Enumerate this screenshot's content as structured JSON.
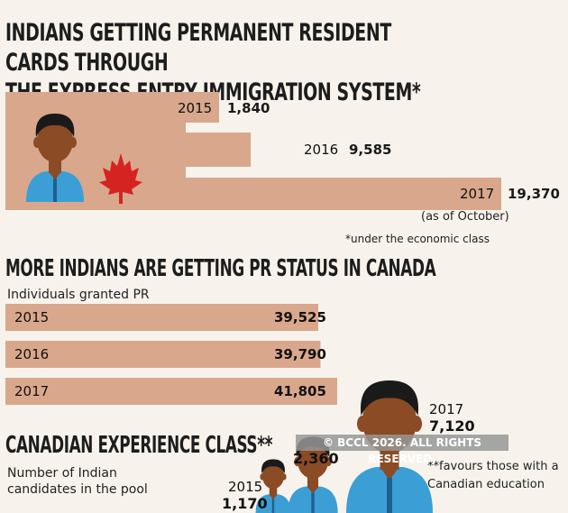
{
  "colors": {
    "bar": "#d9a78c",
    "bar_light": "#e4b79f",
    "skin": "#8a4b25",
    "hair": "#1b1a1a",
    "shirt": "#3b9fd6",
    "leaf": "#d5231f"
  },
  "section1": {
    "title_line1": "INDIANS GETTING PERMANENT RESIDENT CARDS THROUGH",
    "title_line2": "THE EXPRESS ENTRY IMMIGRATION SYSTEM*",
    "as_of": "(as of October)",
    "note": "*under the economic class",
    "icons": [
      "person-icon",
      "maple-leaf-icon"
    ]
  },
  "section2": {
    "title": "MORE INDIANS ARE GETTING PR STATUS IN CANADA",
    "subtitle": "Individuals granted PR"
  },
  "section3": {
    "title": "CANADIAN EXPERIENCE CLASS**",
    "subtitle": "Number of Indian candidates in the pool",
    "note": "**favours those with a Canadian education",
    "icons": [
      "person-icon"
    ]
  },
  "watermark": "© BCCL 2026. ALL RIGHTS RESERVED.",
  "chart_data": [
    {
      "type": "bar",
      "title": "INDIANS GETTING PERMANENT RESIDENT CARDS THROUGH THE EXPRESS ENTRY IMMIGRATION SYSTEM*",
      "categories": [
        "2015",
        "2016",
        "2017"
      ],
      "values": [
        1840,
        9585,
        19370
      ],
      "value_labels": [
        "1,840",
        "9,585",
        "19,370"
      ],
      "orientation": "horizontal"
    },
    {
      "type": "bar",
      "title": "MORE INDIANS ARE GETTING PR STATUS IN CANADA",
      "subtitle": "Individuals granted PR",
      "categories": [
        "2015",
        "2016",
        "2017"
      ],
      "values": [
        39525,
        39790,
        41805
      ],
      "value_labels": [
        "39,525",
        "39,790",
        "41,805"
      ],
      "orientation": "horizontal"
    },
    {
      "type": "bar",
      "title": "CANADIAN EXPERIENCE CLASS**",
      "subtitle": "Number of Indian candidates in the pool",
      "categories": [
        "2015",
        "2016",
        "2017"
      ],
      "values": [
        1170,
        2360,
        7120
      ],
      "value_labels": [
        "1,170",
        "2,360",
        "7,120"
      ],
      "style": "pictogram"
    }
  ]
}
